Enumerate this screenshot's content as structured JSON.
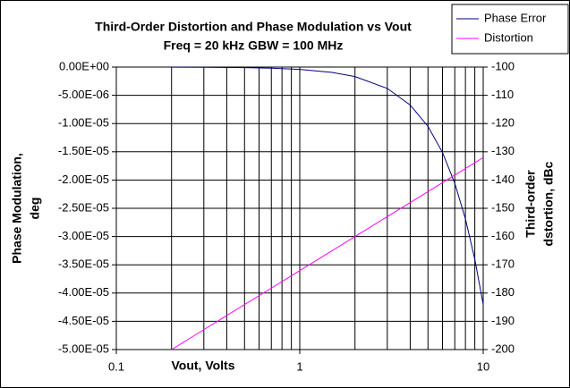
{
  "chart_data": {
    "type": "line",
    "title": "Third-Order Distortion and Phase Modulation vs Vout",
    "subtitle": "Freq = 20 kHz  GBW = 100 MHz",
    "x_label": "Vout, Volts",
    "y_label": [
      "Phase Modulation,",
      "deg"
    ],
    "y2_label": [
      "Third-order",
      "dstortion, dBc"
    ],
    "x": [
      0.2,
      0.3,
      0.5,
      0.7,
      1,
      1.5,
      2,
      3,
      4,
      5,
      6,
      7,
      8,
      9,
      10
    ],
    "series": [
      {
        "name": "Phase Error",
        "color": "#000080",
        "axis": "y",
        "values": [
          -1.68e-08,
          -3.78e-08,
          -1.05e-07,
          -2.06e-07,
          -4.2e-07,
          -9.45e-07,
          -1.68e-06,
          -3.78e-06,
          -6.72e-06,
          -1.05e-05,
          -1.512e-05,
          -2.058e-05,
          -2.688e-05,
          -3.402e-05,
          -4.2e-05
        ]
      },
      {
        "name": "Distortion",
        "color": "#ff00ff",
        "axis": "y2",
        "values": [
          -200,
          -192.96,
          -184.08,
          -178.24,
          -172.04,
          -165,
          -160,
          -152.96,
          -147.96,
          -144.08,
          -140.91,
          -138.24,
          -135.92,
          -133.87,
          -132.04
        ]
      }
    ],
    "x_log": true,
    "xlim": [
      0.1,
      10
    ],
    "xticks": [
      0.1,
      1,
      10
    ],
    "x_minor_grid": [
      0.2,
      0.3,
      0.4,
      0.5,
      0.6,
      0.7,
      0.8,
      0.9,
      2,
      3,
      4,
      5,
      6,
      7,
      8,
      9
    ],
    "ylim": [
      -5e-05,
      0
    ],
    "yticks": [
      {
        "value": 0,
        "label": "0.00E+00"
      },
      {
        "value": -5e-06,
        "label": "-5.00E-06"
      },
      {
        "value": -1e-05,
        "label": "-1.00E-05"
      },
      {
        "value": -1.5e-05,
        "label": "-1.50E-05"
      },
      {
        "value": -2e-05,
        "label": "-2.00E-05"
      },
      {
        "value": -2.5e-05,
        "label": "-2.50E-05"
      },
      {
        "value": -3e-05,
        "label": "-3.00E-05"
      },
      {
        "value": -3.5e-05,
        "label": "-3.50E-05"
      },
      {
        "value": -4e-05,
        "label": "-4.00E-05"
      },
      {
        "value": -4.5e-05,
        "label": "-4.50E-05"
      },
      {
        "value": -5e-05,
        "label": "-5.00E-05"
      }
    ],
    "y2lim": [
      -200,
      -100
    ],
    "y2ticks": [
      -100,
      -110,
      -120,
      -130,
      -140,
      -150,
      -160,
      -170,
      -180,
      -190,
      -200
    ],
    "grid": true,
    "legend": "top-right"
  }
}
